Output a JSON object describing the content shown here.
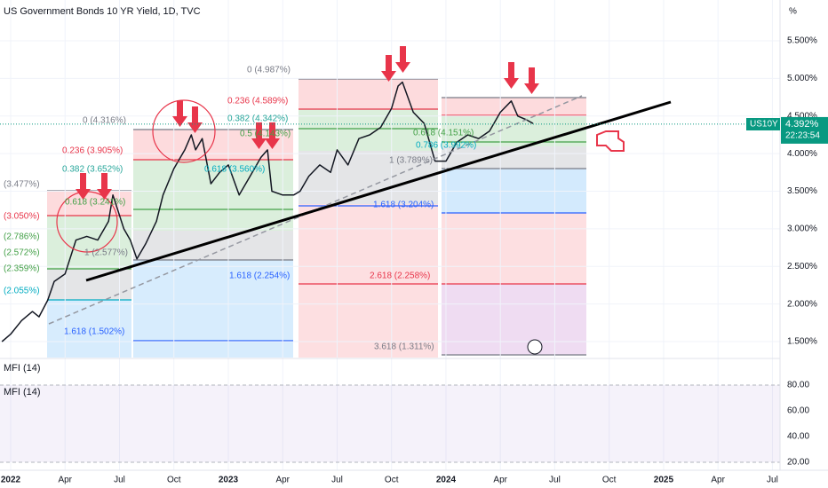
{
  "header": {
    "title": "US Government Bonds 10 YR Yield, 1D, TVC",
    "unit": "%"
  },
  "chart_data": [
    {
      "type": "line",
      "series": [
        {
          "name": "US10Y",
          "color": "#131722",
          "x": [
            2021.96,
            2022.0,
            2022.05,
            2022.1,
            2022.13,
            2022.17,
            2022.2,
            2022.25,
            2022.3,
            2022.35,
            2022.4,
            2022.45,
            2022.47,
            2022.52,
            2022.55,
            2022.58,
            2022.62,
            2022.67,
            2022.7,
            2022.75,
            2022.8,
            2022.83,
            2022.85,
            2022.88,
            2022.92,
            2022.96,
            2023.0,
            2023.05,
            2023.1,
            2023.15,
            2023.18,
            2023.2,
            2023.25,
            2023.3,
            2023.33,
            2023.37,
            2023.42,
            2023.47,
            2023.5,
            2023.55,
            2023.6,
            2023.65,
            2023.7,
            2023.75,
            2023.78,
            2023.8,
            2023.85,
            2023.9,
            2023.95,
            2024.0,
            2024.05,
            2024.1,
            2024.15,
            2024.2,
            2024.25,
            2024.3,
            2024.33,
            2024.37,
            2024.4
          ],
          "values": [
            1.5,
            1.6,
            1.78,
            1.9,
            1.83,
            2.05,
            2.3,
            2.4,
            2.85,
            2.9,
            2.85,
            3.1,
            3.45,
            3.0,
            2.85,
            2.6,
            2.8,
            3.1,
            3.45,
            3.8,
            4.05,
            4.25,
            4.05,
            4.2,
            3.6,
            3.75,
            3.85,
            3.45,
            3.7,
            3.95,
            4.05,
            3.5,
            3.45,
            3.45,
            3.5,
            3.7,
            3.85,
            3.75,
            4.05,
            3.85,
            4.2,
            4.25,
            4.35,
            4.6,
            4.9,
            4.95,
            4.55,
            4.4,
            3.9,
            3.9,
            4.15,
            4.25,
            4.2,
            4.3,
            4.55,
            4.7,
            4.5,
            4.45,
            4.4
          ]
        }
      ],
      "last_price": {
        "value": 4.392,
        "label": "4.392%"
      },
      "countdown": "22:23:54",
      "xlim": [
        2021.951,
        2025.535
      ],
      "xticks": [
        {
          "value": 2022,
          "label": "2022"
        },
        {
          "value": 2022.25,
          "label": "Apr"
        },
        {
          "value": 2022.5,
          "label": "Jul"
        },
        {
          "value": 2022.75,
          "label": "Oct"
        },
        {
          "value": 2023,
          "label": "2023"
        },
        {
          "value": 2023.25,
          "label": "Apr"
        },
        {
          "value": 2023.5,
          "label": "Jul"
        },
        {
          "value": 2023.75,
          "label": "Oct"
        },
        {
          "value": 2024,
          "label": "2024"
        },
        {
          "value": 2024.25,
          "label": "Apr"
        },
        {
          "value": 2024.5,
          "label": "Jul"
        },
        {
          "value": 2024.75,
          "label": "Oct"
        },
        {
          "value": 2025,
          "label": "2025"
        },
        {
          "value": 2025.25,
          "label": "Apr"
        },
        {
          "value": 2025.5,
          "label": "Jul"
        }
      ],
      "ylim": [
        1.288,
        6.043
      ],
      "yticks": [
        {
          "value": 1.5,
          "label": "1.500%"
        },
        {
          "value": 2,
          "label": "2.000%"
        },
        {
          "value": 2.5,
          "label": "2.500%"
        },
        {
          "value": 3,
          "label": "3.000%"
        },
        {
          "value": 3.5,
          "label": "3.500%"
        },
        {
          "value": 4,
          "label": "4.000%"
        },
        {
          "value": 4.5,
          "label": "4.500%"
        },
        {
          "value": 5,
          "label": "5.000%"
        },
        {
          "value": 5.5,
          "label": "5.500%"
        }
      ],
      "grid": true,
      "annotations": [
        "(3.477%)",
        "0.618 (3.241%)",
        "(3.050%)",
        "(2.786%)",
        "(2.572%)",
        "1 (2.577%)",
        "(2.359%)",
        "(2.055%)",
        "1.618 (1.502%)",
        "0 (4.316%)",
        "0.236 (3.905%)",
        "0.382 (3.652%)",
        "0.618 (3.560%)",
        "1.618 (2.254%)",
        "0 (4.987%)",
        "0.236 (4.589%)",
        "0.382 (4.342%)",
        "0.5 (4.143%)",
        "1.618 (3.204%)",
        "2.618 (2.258%)",
        "3.618 (1.311%)",
        "0.618 (4.151%)",
        "0.786 (3.992%)",
        "1 (3.789%)"
      ]
    },
    {
      "type": "line",
      "title": "MFI (14)",
      "ylim": [
        13.8,
        100
      ],
      "yticks": [
        {
          "value": 20,
          "label": "20.00"
        },
        {
          "value": 40,
          "label": "40.00"
        },
        {
          "value": 60,
          "label": "60.00"
        },
        {
          "value": 80,
          "label": "80.00"
        }
      ]
    }
  ]
}
